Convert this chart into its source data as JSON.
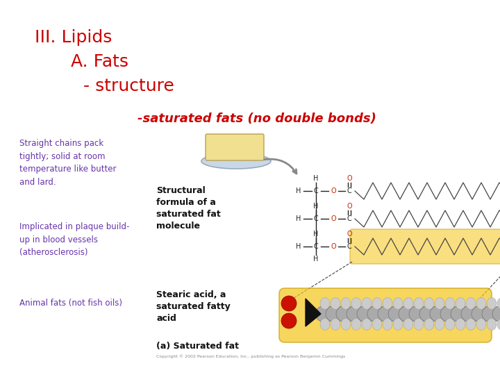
{
  "bg_color": "#ffffff",
  "title_line1": "III. Lipids",
  "title_line2": "    A. Fats",
  "title_line3": "     - structure",
  "title_color": "#cc0000",
  "subtitle": "-saturated fats (no double bonds)",
  "subtitle_color": "#cc0000",
  "left_text1": "Straight chains pack\ntightly; solid at room\ntemperature like butter\nand lard.",
  "left_text2": "Implicated in plaque build-\nup in blood vessels\n(atherosclerosis)",
  "left_text3": "Animal fats (not fish oils)",
  "left_text_color": "#6633aa",
  "struct_label": "Structural\nformula of a\nsaturated fat\nmolecule",
  "stearic_label": "Stearic acid, a\nsaturated fatty\nacid",
  "caption": "(a) Saturated fat",
  "copyright": "Copyright © 2002 Pearson Education, Inc., publishing as Pearson Benjamin Cummings",
  "label_color": "#111111",
  "line_color": "#222222",
  "oxy_color": "#cc2200",
  "yellow_fill": "#f5c518",
  "yellow_edge": "#c8a010"
}
